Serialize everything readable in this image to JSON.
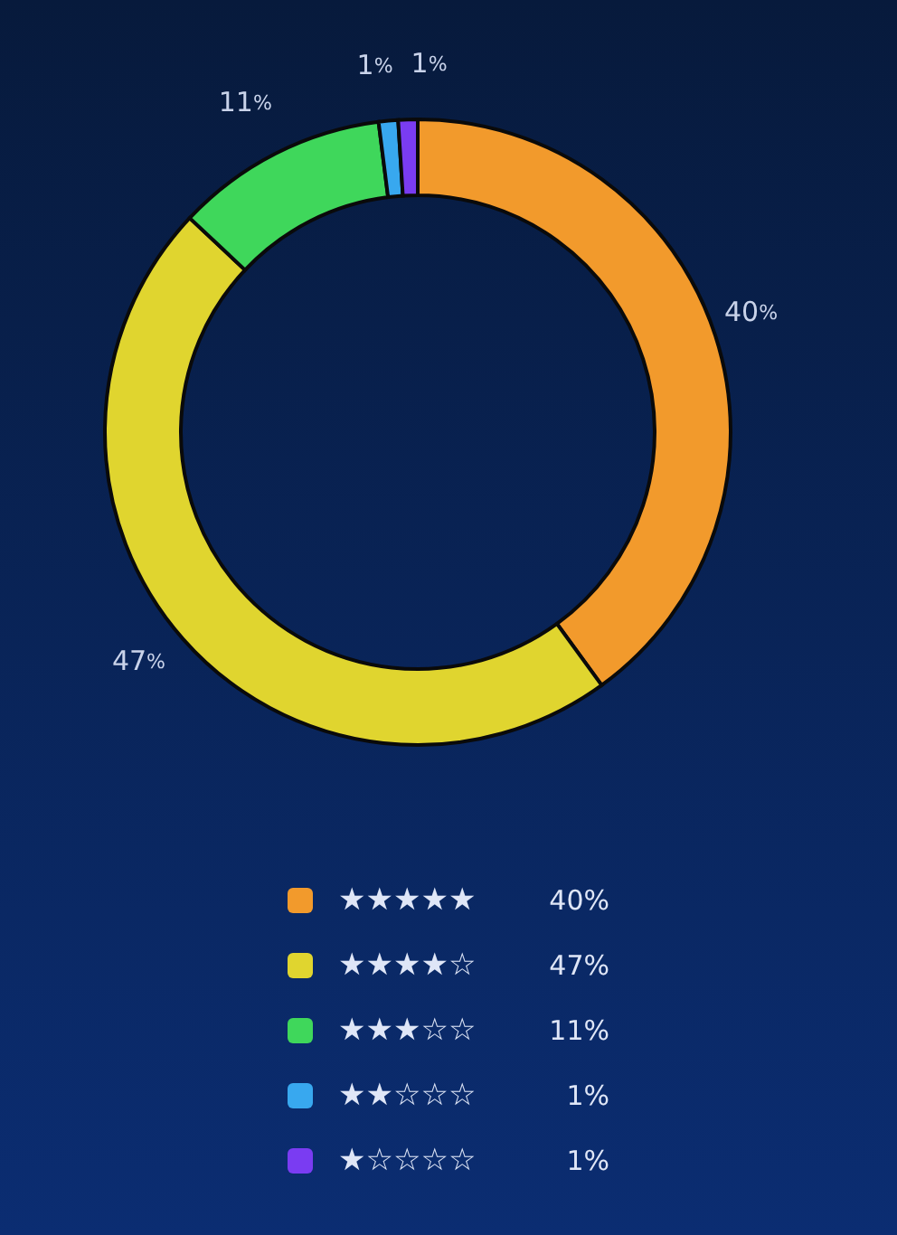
{
  "chart_data": {
    "type": "donut",
    "categories": [
      "★★★★★",
      "★★★★☆",
      "★★★☆☆",
      "★★☆☆☆",
      "★☆☆☆☆"
    ],
    "values": [
      40,
      47,
      11,
      1,
      1
    ],
    "colors": [
      "#f29a2c",
      "#e0d52f",
      "#3fd75b",
      "#38a8ef",
      "#7a3cf2"
    ],
    "value_labels": [
      "40%",
      "47%",
      "11%",
      "1%",
      "1%"
    ],
    "legend": "bottom"
  }
}
